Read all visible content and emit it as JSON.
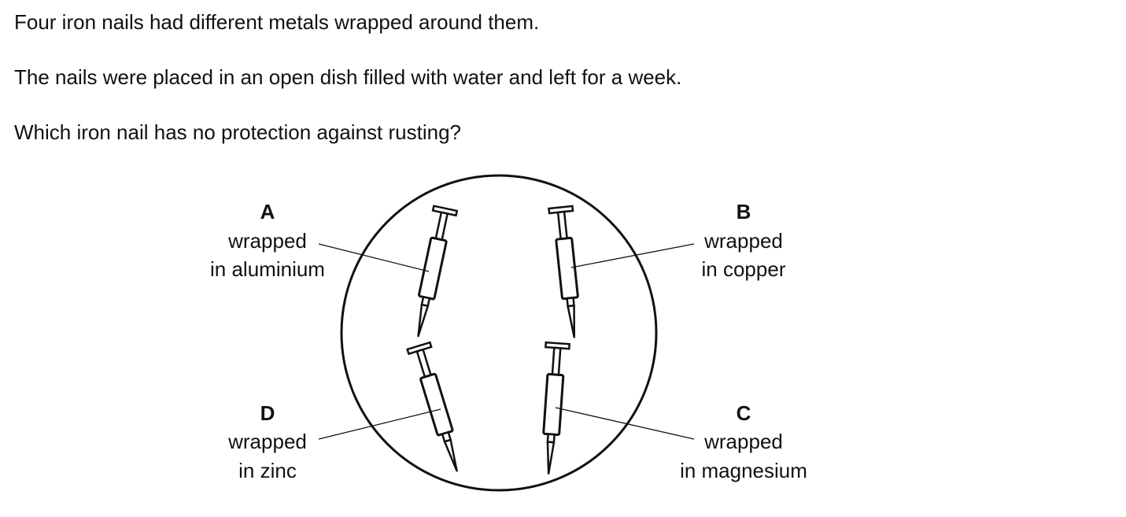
{
  "question": {
    "line1": "Four iron nails had different metals wrapped around them.",
    "line2": "The nails were placed in an open dish filled with water and left for a week.",
    "line3": "Which iron nail has no protection against rusting?"
  },
  "diagram": {
    "nails": [
      {
        "letter": "A",
        "label_line1": "wrapped",
        "label_line2": "in aluminium"
      },
      {
        "letter": "B",
        "label_line1": "wrapped",
        "label_line2": "in copper"
      },
      {
        "letter": "C",
        "label_line1": "wrapped",
        "label_line2": "in magnesium"
      },
      {
        "letter": "D",
        "label_line1": "wrapped",
        "label_line2": "in zinc"
      }
    ]
  }
}
